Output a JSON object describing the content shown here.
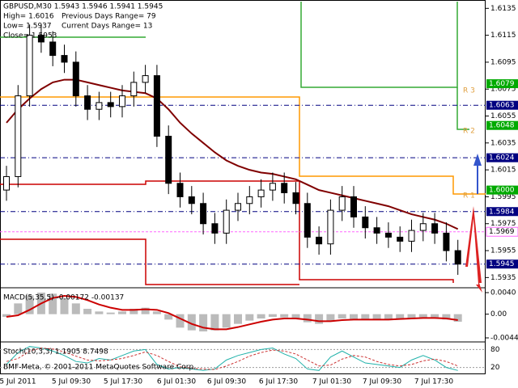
{
  "chart_data": {
    "type": "candlestick",
    "header": [
      "GBPUSD,M30  1.5943 1.5946 1.5941 1.5945",
      "High= 1.6016",
      "Low= 1.5937",
      "Close= 1.5953",
      "Previous Days Range= 79",
      "Current Days Range= 13"
    ],
    "open": [
      1.6,
      1.601,
      1.607,
      1.6115,
      1.611,
      1.61,
      1.6095,
      1.607,
      1.606,
      1.6065,
      1.6062,
      1.607,
      1.608,
      1.6085,
      1.604,
      1.6005,
      1.5995,
      1.599,
      1.5975,
      1.5968,
      1.5985,
      1.599,
      1.5995,
      1.6,
      1.6005,
      1.5998,
      1.599,
      1.5965,
      1.596,
      1.5985,
      1.5995,
      1.598,
      1.5972,
      1.5968,
      1.5965,
      1.5962,
      1.597,
      1.5975,
      1.5968,
      1.5955
    ],
    "high": [
      1.6018,
      1.6078,
      1.6123,
      1.6123,
      1.6118,
      1.6108,
      1.6103,
      1.6078,
      1.6073,
      1.6073,
      1.6078,
      1.6088,
      1.6093,
      1.6093,
      1.6048,
      1.6013,
      1.6003,
      1.5998,
      1.5983,
      1.5993,
      1.5998,
      1.6003,
      1.6008,
      1.6013,
      1.6013,
      1.6006,
      1.5998,
      1.5973,
      1.5993,
      1.6003,
      1.6003,
      1.5988,
      1.598,
      1.5976,
      1.5973,
      1.5978,
      1.5983,
      1.5983,
      1.5976,
      1.5963
    ],
    "low": [
      1.5992,
      1.6002,
      1.6062,
      1.6102,
      1.6092,
      1.6087,
      1.6062,
      1.6052,
      1.6052,
      1.6054,
      1.6054,
      1.6062,
      1.6072,
      1.6032,
      1.5997,
      1.5987,
      1.5982,
      1.5967,
      1.596,
      1.596,
      1.5977,
      1.5982,
      1.5987,
      1.5992,
      1.599,
      1.5982,
      1.5957,
      1.5952,
      1.5952,
      1.5977,
      1.5972,
      1.5964,
      1.596,
      1.5957,
      1.5954,
      1.5954,
      1.5962,
      1.596,
      1.5947,
      1.5937
    ],
    "close": [
      1.601,
      1.607,
      1.6115,
      1.611,
      1.61,
      1.6095,
      1.607,
      1.606,
      1.6065,
      1.6062,
      1.607,
      1.608,
      1.6085,
      1.604,
      1.6005,
      1.5995,
      1.599,
      1.5975,
      1.5968,
      1.5985,
      1.599,
      1.5995,
      1.6,
      1.6005,
      1.5998,
      1.599,
      1.5965,
      1.596,
      1.5985,
      1.5995,
      1.598,
      1.5972,
      1.5968,
      1.5965,
      1.5962,
      1.597,
      1.5975,
      1.5968,
      1.5955,
      1.5945
    ],
    "ma": {
      "color": "#800000",
      "values": [
        1.605,
        1.606,
        1.6068,
        1.6075,
        1.608,
        1.6082,
        1.6082,
        1.608,
        1.6078,
        1.6076,
        1.6074,
        1.6073,
        1.6072,
        1.6068,
        1.606,
        1.605,
        1.6042,
        1.6035,
        1.6028,
        1.6022,
        1.6018,
        1.6015,
        1.6013,
        1.6012,
        1.601,
        1.6008,
        1.6004,
        1.6,
        1.5998,
        1.5996,
        1.5994,
        1.5992,
        1.599,
        1.5988,
        1.5985,
        1.5982,
        1.598,
        1.5978,
        1.5975,
        1.5971
      ]
    },
    "ylim": [
      1.5928,
      1.614
    ],
    "yticks": [
      1.6135,
      1.6115,
      1.6095,
      1.6075,
      1.6055,
      1.6035,
      1.6015,
      1.5995,
      1.5975,
      1.5955,
      1.5935
    ],
    "levels": [
      {
        "value": 1.6079,
        "color": "#00aa00"
      },
      {
        "value": 1.6063,
        "color": "#000080"
      },
      {
        "value": 1.6048,
        "color": "#00aa00"
      },
      {
        "value": 1.6024,
        "color": "#000080"
      },
      {
        "value": {
          "value": 1.6,
          "label": "1.6000"
        },
        "color": "#00aa00"
      },
      {
        "value": 1.5984,
        "color": "#000080"
      },
      {
        "value": 1.5969,
        "color": "#ff66ff"
      },
      {
        "value": 1.5945,
        "color": "#000080"
      }
    ],
    "pivot_labels": [
      "R 3",
      "R 2",
      "R 1"
    ],
    "macd": {
      "title": "MACD(5,35,5) -0.00172 -0.00137",
      "histogram": [
        -0.0005,
        0.002,
        0.0035,
        0.004,
        0.0038,
        0.003,
        0.002,
        0.001,
        0.0005,
        0.0003,
        0.0005,
        0.001,
        0.0012,
        0.0005,
        -0.001,
        -0.0025,
        -0.003,
        -0.0032,
        -0.003,
        -0.0025,
        -0.0018,
        -0.0012,
        -0.0008,
        -0.0005,
        -0.0006,
        -0.0008,
        -0.0015,
        -0.0018,
        -0.0012,
        -0.0008,
        -0.0009,
        -0.001,
        -0.0011,
        -0.001,
        -0.0009,
        -0.0007,
        -0.0006,
        -0.0007,
        -0.001,
        -0.0014
      ],
      "signal": [
        -0.0005,
        -0.0002,
        0.0008,
        0.002,
        0.003,
        0.0034,
        0.0032,
        0.0026,
        0.0018,
        0.0012,
        0.0008,
        0.0008,
        0.0009,
        0.0008,
        0.0002,
        -0.0008,
        -0.0018,
        -0.0025,
        -0.0028,
        -0.0028,
        -0.0024,
        -0.0019,
        -0.0014,
        -0.001,
        -0.0008,
        -0.0008,
        -0.001,
        -0.0013,
        -0.0013,
        -0.0011,
        -0.001,
        -0.001,
        -0.001,
        -0.001,
        -0.0009,
        -0.0008,
        -0.0007,
        -0.0007,
        -0.0008,
        -0.0011
      ],
      "ylim": [
        -0.005,
        0.0046
      ],
      "yticks": [
        {
          "value": 0.004,
          "label": "0.0040"
        },
        {
          "value": 0,
          "label": "0.00"
        },
        {
          "value": -0.0044,
          "label": "-0.0044"
        }
      ]
    },
    "stoch": {
      "title": "Stoch(10,3,3) 1.1905 8.7498",
      "main": [
        30,
        70,
        90,
        85,
        75,
        60,
        40,
        35,
        50,
        45,
        60,
        75,
        80,
        30,
        15,
        20,
        15,
        10,
        15,
        45,
        60,
        70,
        80,
        85,
        65,
        50,
        15,
        10,
        55,
        75,
        55,
        35,
        30,
        25,
        20,
        45,
        60,
        45,
        20,
        10
      ],
      "signal": [
        40,
        50,
        75,
        85,
        82,
        72,
        58,
        45,
        42,
        45,
        50,
        60,
        72,
        60,
        40,
        22,
        17,
        15,
        13,
        25,
        40,
        58,
        70,
        78,
        75,
        65,
        45,
        25,
        28,
        48,
        60,
        55,
        40,
        30,
        25,
        30,
        42,
        48,
        40,
        25
      ],
      "ylim": [
        0,
        100
      ],
      "yticks": [
        80,
        20
      ]
    },
    "time_labels": [
      "5 Jul 2011",
      "5 Jul 09:30",
      "5 Jul 17:30",
      "6 Jul 01:30",
      "6 Jul 09:30",
      "6 Jul 17:30",
      "7 Jul 01:30",
      "7 Jul 09:30",
      "7 Jul 17:30"
    ],
    "footer": "BMF-Meta, © 2001-2011 MetaQuotes Software Corp."
  }
}
